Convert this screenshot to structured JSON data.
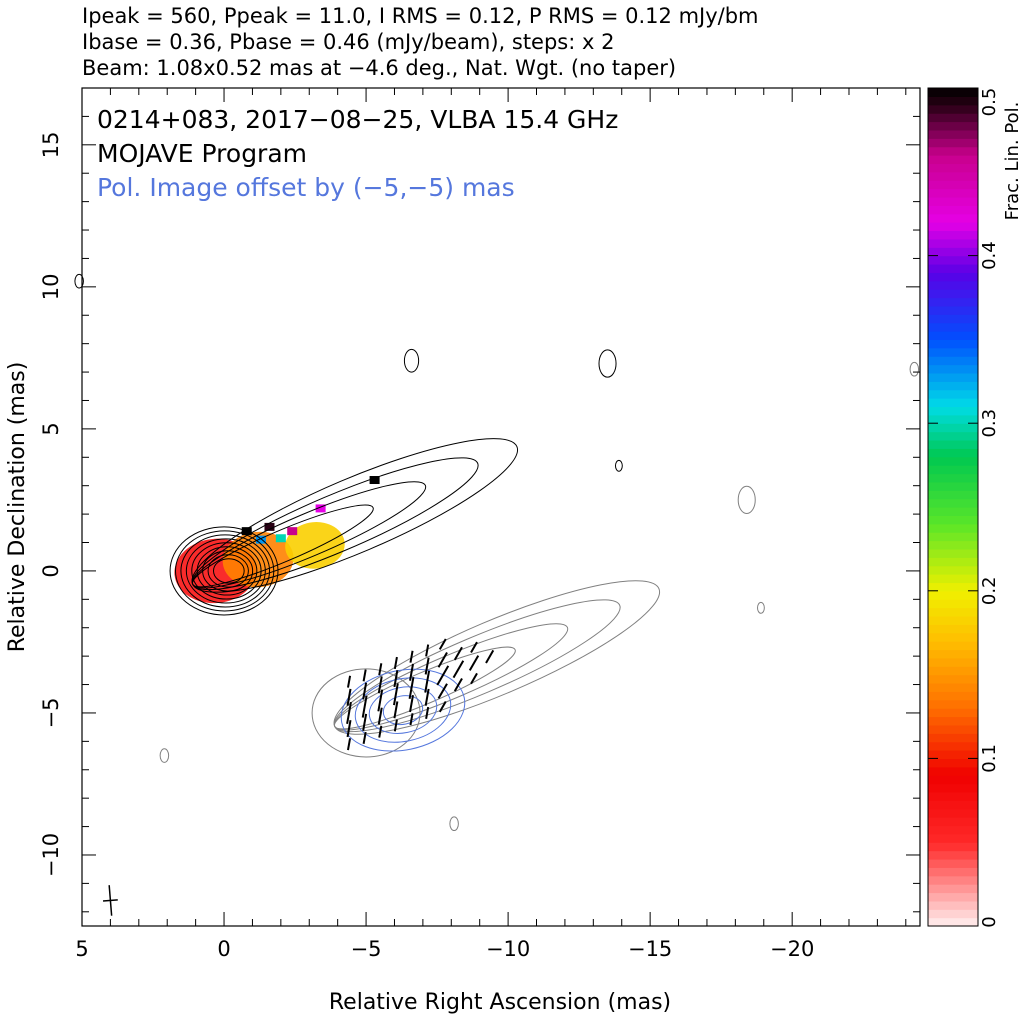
{
  "header": {
    "line1": "Ipeak = 560, Ppeak = 11.0, I RMS = 0.12, P RMS = 0.12 mJy/bm",
    "line2": "Ibase = 0.36, Pbase = 0.46 (mJy/beam), steps: x 2",
    "line3": "Beam: 1.08x0.52 mas at −4.6 deg., Nat. Wgt. (no taper)"
  },
  "annotations": {
    "source": "0214+083, 2017−08−25, VLBA 15.4 GHz",
    "program": "MOJAVE Program",
    "offset_note": "Pol. Image offset by (−5,−5) mas"
  },
  "colors": {
    "frame": "#000000",
    "contour_total": "#000000",
    "contour_offset": "#808080",
    "pol_contour": "#5577dd",
    "offset_note": "#5577dd",
    "evpa": "#000000"
  },
  "chart_data": {
    "type": "heatmap",
    "xlabel": "Relative Right Ascension (mas)",
    "ylabel": "Relative Declination (mas)",
    "xlim": [
      5,
      -24.5
    ],
    "ylim": [
      -12.5,
      17
    ],
    "xticks": [
      5,
      0,
      -5,
      -10,
      -15,
      -20
    ],
    "xtick_labels": [
      "5",
      "0",
      "−5",
      "−10",
      "−15",
      "−20"
    ],
    "yticks": [
      -10,
      -5,
      0,
      5,
      10,
      15
    ],
    "ytick_labels": [
      "−10",
      "−5",
      "0",
      "5",
      "10",
      "15"
    ],
    "colorbar": {
      "label": "Frac. Lin. Pol.",
      "range": [
        0,
        0.5
      ],
      "ticks": [
        0,
        0.1,
        0.2,
        0.3,
        0.4,
        0.5
      ],
      "tick_labels": [
        "0",
        "0.1",
        "0.2",
        "0.3",
        "0.4",
        "0.5"
      ]
    },
    "core_position": [
      0,
      0
    ],
    "peak_intensity_mJy_per_beam": 560,
    "peak_pol_mJy_per_beam": 11.0,
    "contour_base_mJy_per_beam": 0.36,
    "contour_step_factor": 2,
    "pol_offset_mas": [
      -5,
      -5
    ],
    "jet_position_angle_deg": -67,
    "jet_extent_mas": 10,
    "fractional_pol_knots": [
      {
        "x": 0.3,
        "y": 0.0,
        "value": 0.07
      },
      {
        "x": -1.2,
        "y": 0.4,
        "value": 0.14
      },
      {
        "x": -3.2,
        "y": 0.9,
        "value": 0.18
      }
    ],
    "beam": {
      "major_mas": 1.08,
      "minor_mas": 0.52,
      "pa_deg": -4.6
    }
  }
}
